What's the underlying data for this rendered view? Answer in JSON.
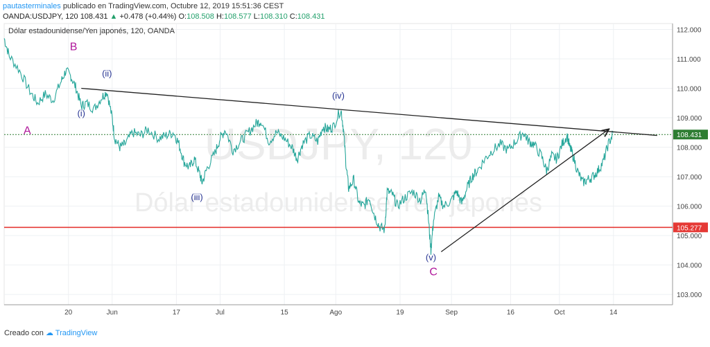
{
  "header": {
    "author": "pautasterminales",
    "published": "publicado en TradingView.com, Octubre 12, 2019 15:51:36 CEST"
  },
  "quote": {
    "symbol": "OANDA:USDJPY, 120",
    "last": "108.431",
    "change": "+0.478 (+0.44%)",
    "o_label": "O:",
    "o": "108.508",
    "h_label": "H:",
    "h": "108.577",
    "l_label": "L:",
    "l": "108.310",
    "c_label": "C:",
    "c": "108.431"
  },
  "chart_data": {
    "type": "line",
    "title": "Dólar estadounidense/Yen japonés, 120, OANDA",
    "watermark_line1": "USDJPY, 120",
    "watermark_line2": "Dólar estadounidense/Yen japonés",
    "ylim": [
      102.65,
      112.2
    ],
    "y_ticks": [
      103.0,
      104.0,
      105.0,
      106.0,
      107.0,
      108.0,
      109.0,
      110.0,
      111.0,
      112.0
    ],
    "x_ticks": [
      "20",
      "Jun",
      "17",
      "Jul",
      "15",
      "Ago",
      "19",
      "Sep",
      "16",
      "Oct",
      "14"
    ],
    "x_tick_pos": [
      0.125,
      0.21,
      0.335,
      0.42,
      0.545,
      0.645,
      0.77,
      0.87,
      0.985,
      1.08,
      1.185
    ],
    "series": [
      {
        "values": [
          [
            0.0,
            111.7
          ],
          [
            0.01,
            111.1
          ],
          [
            0.03,
            110.6
          ],
          [
            0.05,
            109.9
          ],
          [
            0.065,
            109.5
          ],
          [
            0.08,
            109.8
          ],
          [
            0.095,
            109.6
          ],
          [
            0.11,
            110.2
          ],
          [
            0.12,
            110.6
          ],
          [
            0.13,
            110.4
          ],
          [
            0.14,
            110.0
          ],
          [
            0.15,
            109.4
          ],
          [
            0.16,
            109.5
          ],
          [
            0.175,
            109.3
          ],
          [
            0.19,
            109.7
          ],
          [
            0.2,
            109.9
          ],
          [
            0.21,
            109.0
          ],
          [
            0.215,
            108.3
          ],
          [
            0.225,
            108.0
          ],
          [
            0.235,
            108.1
          ],
          [
            0.25,
            108.5
          ],
          [
            0.265,
            108.4
          ],
          [
            0.28,
            108.6
          ],
          [
            0.3,
            108.3
          ],
          [
            0.315,
            108.4
          ],
          [
            0.33,
            108.5
          ],
          [
            0.34,
            108.1
          ],
          [
            0.35,
            107.5
          ],
          [
            0.36,
            107.3
          ],
          [
            0.37,
            107.6
          ],
          [
            0.38,
            107.1
          ],
          [
            0.385,
            106.8
          ],
          [
            0.395,
            107.3
          ],
          [
            0.41,
            107.8
          ],
          [
            0.42,
            108.3
          ],
          [
            0.43,
            108.6
          ],
          [
            0.445,
            107.9
          ],
          [
            0.46,
            108.2
          ],
          [
            0.475,
            108.5
          ],
          [
            0.49,
            108.8
          ],
          [
            0.5,
            108.9
          ],
          [
            0.515,
            108.2
          ],
          [
            0.53,
            108.5
          ],
          [
            0.545,
            108.3
          ],
          [
            0.56,
            108.0
          ],
          [
            0.57,
            107.6
          ],
          [
            0.58,
            108.1
          ],
          [
            0.595,
            108.4
          ],
          [
            0.61,
            108.2
          ],
          [
            0.62,
            108.7
          ],
          [
            0.63,
            108.6
          ],
          [
            0.64,
            108.7
          ],
          [
            0.655,
            109.3
          ],
          [
            0.66,
            108.6
          ],
          [
            0.665,
            107.4
          ],
          [
            0.67,
            106.6
          ],
          [
            0.68,
            106.9
          ],
          [
            0.69,
            106.1
          ],
          [
            0.7,
            106.0
          ],
          [
            0.71,
            106.3
          ],
          [
            0.72,
            105.7
          ],
          [
            0.73,
            105.3
          ],
          [
            0.74,
            105.2
          ],
          [
            0.745,
            106.5
          ],
          [
            0.755,
            106.4
          ],
          [
            0.765,
            106.0
          ],
          [
            0.78,
            106.3
          ],
          [
            0.795,
            106.5
          ],
          [
            0.81,
            106.2
          ],
          [
            0.82,
            106.6
          ],
          [
            0.825,
            105.6
          ],
          [
            0.83,
            104.5
          ],
          [
            0.835,
            105.5
          ],
          [
            0.845,
            106.3
          ],
          [
            0.855,
            106.0
          ],
          [
            0.87,
            106.2
          ],
          [
            0.88,
            106.5
          ],
          [
            0.89,
            106.1
          ],
          [
            0.9,
            106.6
          ],
          [
            0.91,
            107.0
          ],
          [
            0.92,
            107.2
          ],
          [
            0.935,
            107.6
          ],
          [
            0.95,
            107.9
          ],
          [
            0.965,
            108.1
          ],
          [
            0.98,
            107.9
          ],
          [
            0.995,
            108.2
          ],
          [
            1.01,
            108.5
          ],
          [
            1.02,
            108.2
          ],
          [
            1.03,
            108.1
          ],
          [
            1.045,
            107.7
          ],
          [
            1.055,
            107.2
          ],
          [
            1.065,
            107.7
          ],
          [
            1.075,
            107.6
          ],
          [
            1.085,
            108.1
          ],
          [
            1.095,
            108.4
          ],
          [
            1.1,
            108.0
          ],
          [
            1.105,
            107.8
          ],
          [
            1.115,
            107.2
          ],
          [
            1.125,
            106.8
          ],
          [
            1.135,
            106.9
          ],
          [
            1.145,
            107.0
          ],
          [
            1.155,
            107.2
          ],
          [
            1.165,
            107.5
          ],
          [
            1.175,
            108.1
          ],
          [
            1.185,
            108.5
          ]
        ]
      }
    ],
    "hlines": [
      {
        "value": 108.431,
        "label": "108.431",
        "color": "#2e7d32",
        "style": "dotted"
      },
      {
        "value": 105.277,
        "label": "105.277",
        "color": "#e53935",
        "style": "solid"
      }
    ],
    "trendlines": [
      {
        "from": [
          0.15,
          110.0
        ],
        "to": [
          1.27,
          108.4
        ],
        "color": "#222222"
      },
      {
        "from": [
          0.85,
          104.45
        ],
        "to": [
          1.175,
          108.6
        ],
        "color": "#222222",
        "arrow": true
      }
    ],
    "annotations": [
      {
        "text": "B",
        "x": 0.135,
        "y": 111.3,
        "color": "#b0179b"
      },
      {
        "text": "A",
        "x": 0.045,
        "y": 108.45,
        "color": "#b0179b"
      },
      {
        "text": "(ii)",
        "x": 0.2,
        "y": 110.4,
        "color": "#283593"
      },
      {
        "text": "(i)",
        "x": 0.15,
        "y": 109.05,
        "color": "#283593"
      },
      {
        "text": "(iv)",
        "x": 0.65,
        "y": 109.65,
        "color": "#283593"
      },
      {
        "text": "(iii)",
        "x": 0.375,
        "y": 106.2,
        "color": "#283593"
      },
      {
        "text": "(v)",
        "x": 0.83,
        "y": 104.15,
        "color": "#283593"
      },
      {
        "text": "C",
        "x": 0.835,
        "y": 103.65,
        "color": "#b0179b"
      }
    ],
    "series_color": "#26a69a",
    "grid": true
  },
  "footer": {
    "created": "Creado con",
    "brand": "TradingView"
  }
}
